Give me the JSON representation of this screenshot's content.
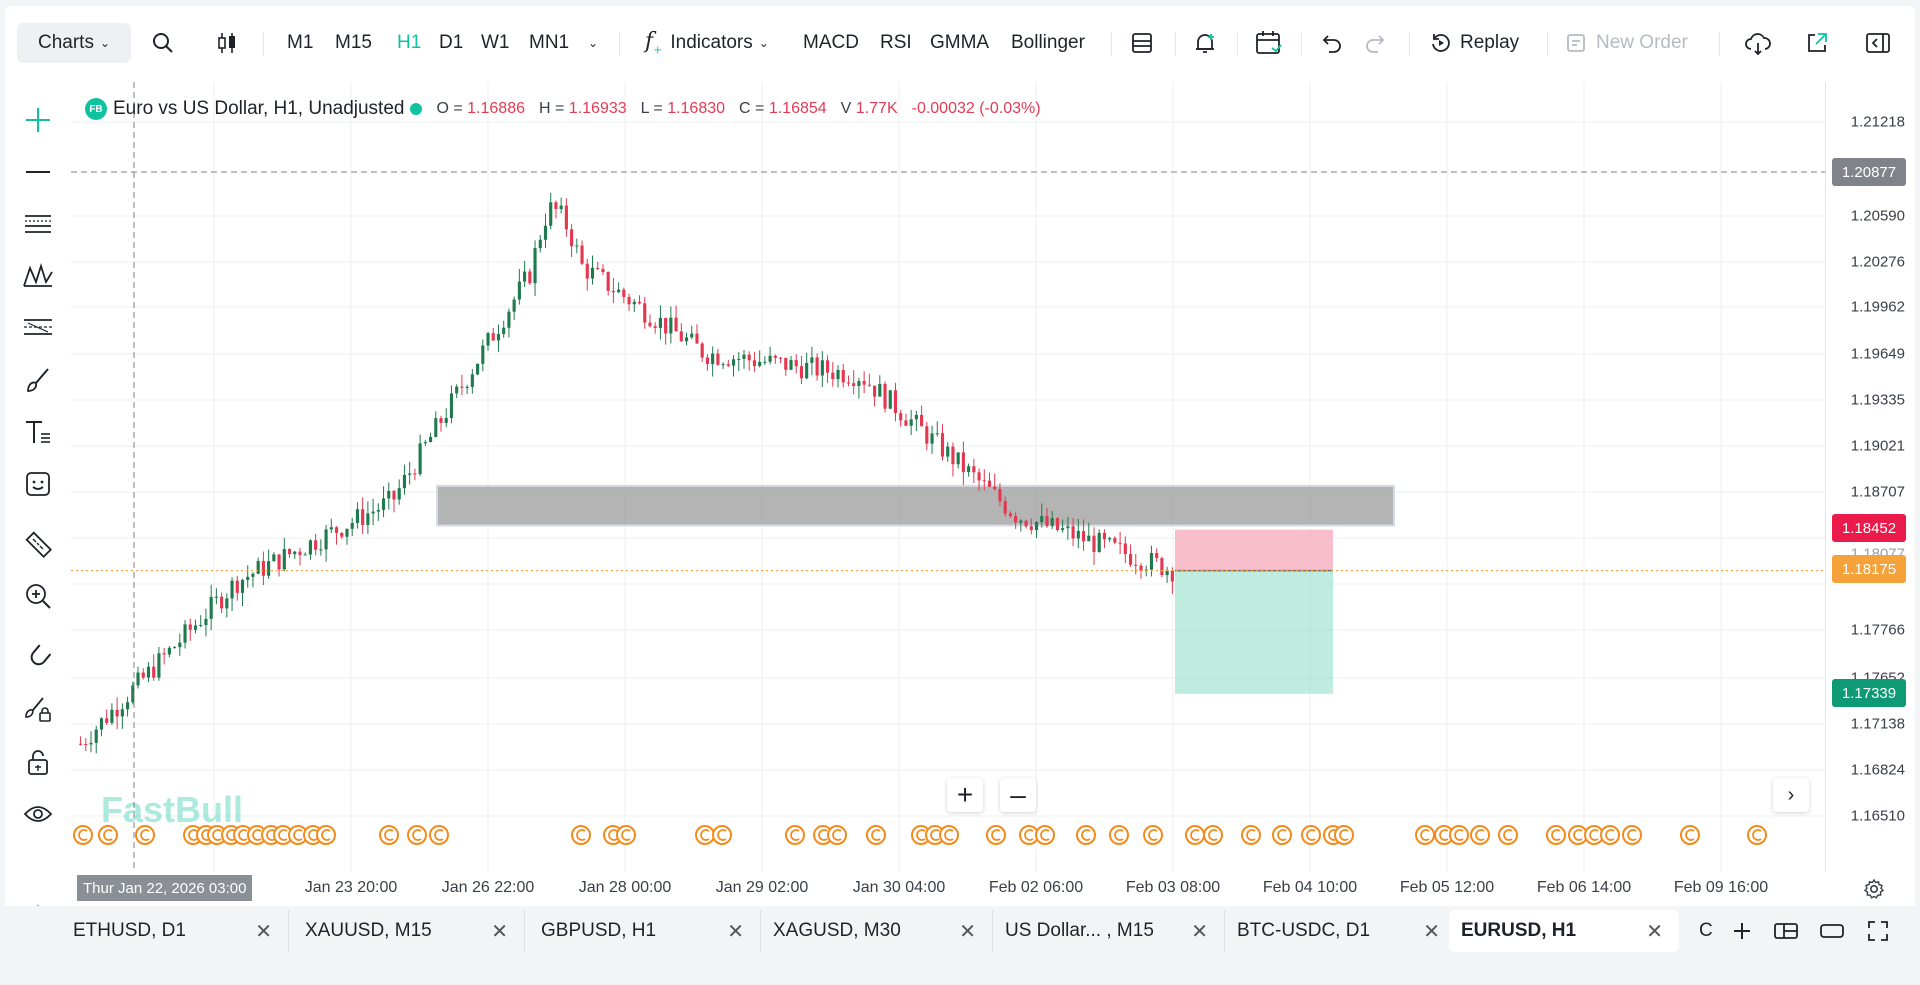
{
  "toolbar": {
    "charts_label": "Charts",
    "timeframes": [
      "M1",
      "M15",
      "H1",
      "D1",
      "W1",
      "MN1"
    ],
    "active_timeframe": "H1",
    "indicators_label": "Indicators",
    "indicator_shortcuts": [
      "MACD",
      "RSI",
      "GMMA",
      "Bollinger"
    ],
    "replay_label": "Replay",
    "new_order_label": "New Order"
  },
  "legend": {
    "symbol_badge": "FB",
    "title": "Euro vs US Dollar, H1, Unadjusted",
    "o_label": "O =",
    "o_value": "1.16886",
    "h_label": "H =",
    "h_value": "1.16933",
    "l_label": "L =",
    "l_value": "1.16830",
    "c_label": "C =",
    "c_value": "1.16854",
    "v_label": "V",
    "v_value": "1.77K",
    "change": "-0.00032 (-0.03%)"
  },
  "watermark": "FastBull",
  "price_axis": {
    "labels": [
      "1.21218",
      "1.20590",
      "1.20276",
      "1.19962",
      "1.19649",
      "1.19335",
      "1.19021",
      "1.18707",
      "1.17766",
      "1.17652",
      "1.17138",
      "1.16824",
      "1.16510"
    ],
    "crosshair_price": "1.20877",
    "stop_price": "1.18452",
    "last_price": "1.18175",
    "target_price": "1.17339",
    "partial_label": "1.18077"
  },
  "time_axis": {
    "cursor_label": "Thur Jan 22, 2026 03:00",
    "labels": [
      "Jan 23 20:00",
      "Jan 26 22:00",
      "Jan 28 00:00",
      "Jan 29 02:00",
      "Jan 30 04:00",
      "Feb 02 06:00",
      "Feb 03 08:00",
      "Feb 04 10:00",
      "Feb 05 12:00",
      "Feb 06 14:00",
      "Feb 09 16:00"
    ]
  },
  "colors": {
    "accent": "#10c3a0",
    "bull": "#1f7a4d",
    "bear": "#e3384f",
    "stop_tag": "#ea1a4a",
    "last_tag": "#f5a23a",
    "target_tag": "#0d9a75",
    "event": "#f38b1c"
  },
  "chart_data": {
    "type": "candlestick",
    "symbol": "EURUSD",
    "timeframe": "H1",
    "x": [
      "Jan 22 03:00",
      "Jan 23 20:00",
      "Jan 26 22:00",
      "Jan 28 00:00",
      "Jan 29 02:00",
      "Jan 30 04:00",
      "Feb 02 06:00",
      "Feb 03 08:00"
    ],
    "path_close": [
      1.17,
      1.181,
      1.1865,
      1.204,
      1.1965,
      1.195,
      1.1855,
      1.1818
    ],
    "ylim": [
      1.164,
      1.214
    ],
    "resistance_zone": [
      1.1848,
      1.1875
    ],
    "position": {
      "side": "short",
      "entry": 1.18175,
      "stop": 1.18452,
      "target": 1.17339
    },
    "grid": true
  },
  "tabs": [
    {
      "label": "ETHUSD, D1"
    },
    {
      "label": "XAUUSD, M15"
    },
    {
      "label": "GBPUSD, H1"
    },
    {
      "label": "XAGUSD, M30"
    },
    {
      "label": "US Dollar... , M15"
    },
    {
      "label": "BTC-USDC, D1"
    },
    {
      "label": "EURUSD, H1"
    }
  ],
  "tab_close": "✕",
  "tab_overflow": "C"
}
